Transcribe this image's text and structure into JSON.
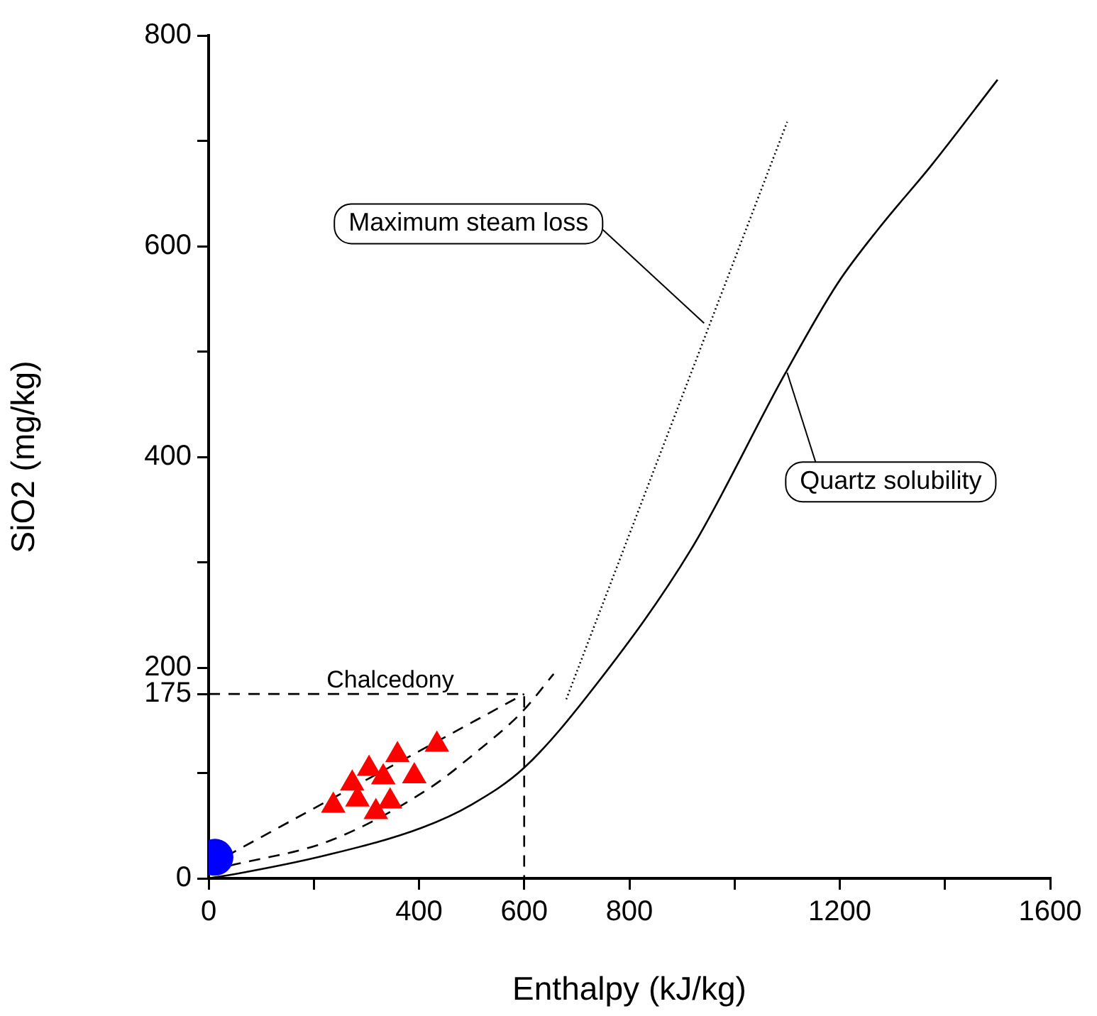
{
  "chart_data": {
    "type": "scatter",
    "xlabel": "Enthalpy (kJ/kg)",
    "ylabel": "SiO2 (mg/kg)",
    "xlim": [
      0,
      1600
    ],
    "ylim": [
      0,
      800
    ],
    "xticks": [
      0,
      {
        "value": 200,
        "label": null
      },
      400,
      {
        "value": 600,
        "label": "600"
      },
      800,
      {
        "value": 1000,
        "label": null
      },
      1200,
      {
        "value": 1400,
        "label": null
      },
      1600
    ],
    "yticks": [
      0,
      {
        "value": 100,
        "label": null
      },
      {
        "value": 175,
        "label": "175"
      },
      200,
      {
        "value": 300,
        "label": null
      },
      400,
      {
        "value": 500,
        "label": null
      },
      600,
      {
        "value": 700,
        "label": null
      },
      800
    ],
    "grid": false,
    "legend": false,
    "series": [
      {
        "type": "line",
        "color": "#000000",
        "line_style": "solid",
        "marker": "none",
        "x": [
          0,
          50,
          224,
          405,
          500,
          600,
          737,
          917,
          1096,
          1195,
          1276,
          1373,
          1500
        ],
        "values": [
          0,
          4,
          22,
          48,
          70,
          105,
          184,
          312,
          479,
          564,
          618,
          676,
          758
        ]
      },
      {
        "type": "line",
        "color": "#000000",
        "line_style": "dotted",
        "marker": "none",
        "x": [
          680,
          1100
        ],
        "values": [
          170,
          718
        ]
      },
      {
        "type": "line",
        "color": "#000000",
        "line_style": "dashed",
        "marker": "none",
        "x": [
          40,
          232,
          421,
          502,
          596,
          656
        ],
        "values": [
          12,
          36,
          86,
          117,
          158,
          194
        ]
      },
      {
        "type": "line",
        "color": "#000000",
        "line_style": "dashed",
        "marker": "none",
        "x": [
          0,
          600
        ],
        "values": [
          12,
          175
        ]
      },
      {
        "type": "line",
        "color": "#000000",
        "line_style": "dashed",
        "marker": "none",
        "x": [
          0,
          600,
          600
        ],
        "values": [
          175,
          175,
          0
        ]
      },
      {
        "color": "#ff0000",
        "marker": "triangle",
        "x": [
          237,
          264,
          273,
          283,
          305,
          318,
          332,
          345,
          359,
          391,
          434
        ],
        "values": [
          69,
          null,
          90,
          75,
          104,
          63,
          96,
          73,
          117,
          97,
          127
        ]
      },
      {
        "color": "#0000ff",
        "marker": "circle",
        "x": [
          12
        ],
        "values": [
          20
        ]
      }
    ],
    "annotations": [
      {
        "text": "Maximum steam loss",
        "x": 942,
        "y": 527
      },
      {
        "text": "Quartz solubility",
        "x": 1100,
        "y": 480
      },
      "Chalcedony"
    ]
  }
}
